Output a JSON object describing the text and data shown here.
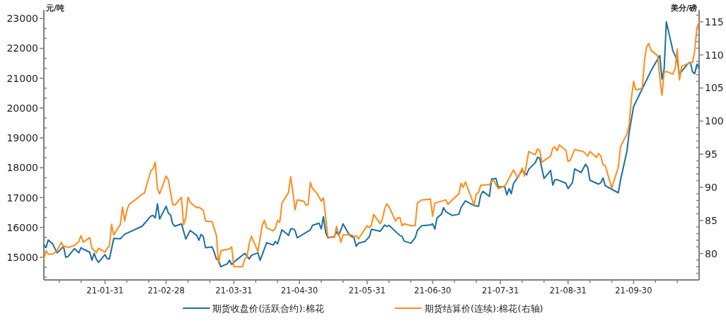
{
  "chart_data": {
    "type": "line",
    "ylabel": "元/吨",
    "y2label": "美分/磅",
    "legend": "bottom",
    "xlim": [
      "--01-03",
      "--10-30"
    ],
    "xticks": [
      {
        "value": "--01-10",
        "label": null
      },
      {
        "value": "--01-20",
        "label": null
      },
      {
        "value": "--01-31",
        "label": "21-01-31"
      },
      {
        "value": "--02-10",
        "label": null
      },
      {
        "value": "--02-20",
        "label": null
      },
      {
        "value": "--02-28",
        "label": "21-02-28"
      },
      {
        "value": "--03-10",
        "label": null
      },
      {
        "value": "--03-20",
        "label": null
      },
      {
        "value": "--03-31",
        "label": "21-03-31"
      },
      {
        "value": "--04-10",
        "label": null
      },
      {
        "value": "--04-20",
        "label": null
      },
      {
        "value": "--04-30",
        "label": "21-04-30"
      },
      {
        "value": "--05-10",
        "label": null
      },
      {
        "value": "--05-20",
        "label": null
      },
      {
        "value": "--05-31",
        "label": "21-05-31"
      },
      {
        "value": "--06-10",
        "label": null
      },
      {
        "value": "--06-20",
        "label": null
      },
      {
        "value": "--06-30",
        "label": "21-06-30"
      },
      {
        "value": "--07-10",
        "label": null
      },
      {
        "value": "--07-20",
        "label": null
      },
      {
        "value": "--07-31",
        "label": "21-07-31"
      },
      {
        "value": "--08-10",
        "label": null
      },
      {
        "value": "--08-20",
        "label": null
      },
      {
        "value": "--08-31",
        "label": "21-08-31"
      },
      {
        "value": "--09-10",
        "label": null
      },
      {
        "value": "--09-20",
        "label": null
      },
      {
        "value": "--09-30",
        "label": "21-09-30"
      },
      {
        "value": "--10-10",
        "label": null
      },
      {
        "value": "--10-20",
        "label": null
      }
    ],
    "ylim": [
      14240,
      23290
    ],
    "yticks": [
      {
        "value": 14333.33,
        "label": null
      },
      {
        "value": 14666.67,
        "label": null
      },
      15000,
      {
        "value": 15333.33,
        "label": null
      },
      {
        "value": 15666.67,
        "label": null
      },
      16000,
      {
        "value": 16333.33,
        "label": null
      },
      {
        "value": 16666.67,
        "label": null
      },
      17000,
      {
        "value": 17333.33,
        "label": null
      },
      {
        "value": 17666.67,
        "label": null
      },
      18000,
      {
        "value": 18333.33,
        "label": null
      },
      {
        "value": 18666.67,
        "label": null
      },
      19000,
      {
        "value": 19333.33,
        "label": null
      },
      {
        "value": 19666.67,
        "label": null
      },
      20000,
      {
        "value": 20333.33,
        "label": null
      },
      {
        "value": 20666.67,
        "label": null
      },
      21000,
      {
        "value": 21333.33,
        "label": null
      },
      {
        "value": 21666.67,
        "label": null
      },
      22000,
      {
        "value": 22333.33,
        "label": null
      },
      {
        "value": 22666.67,
        "label": null
      },
      23000
    ],
    "y2lim": [
      76,
      116.8
    ],
    "y2ticks": [
      {
        "value": 77,
        "label": null
      },
      {
        "value": 78,
        "label": null
      },
      {
        "value": 79,
        "label": null
      },
      80,
      {
        "value": 81,
        "label": null
      },
      {
        "value": 82,
        "label": null
      },
      {
        "value": 83,
        "label": null
      },
      {
        "value": 84,
        "label": null
      },
      85,
      {
        "value": 86,
        "label": null
      },
      {
        "value": 87,
        "label": null
      },
      {
        "value": 88,
        "label": null
      },
      {
        "value": 89,
        "label": null
      },
      90,
      {
        "value": 91,
        "label": null
      },
      {
        "value": 92,
        "label": null
      },
      {
        "value": 93,
        "label": null
      },
      {
        "value": 94,
        "label": null
      },
      95,
      {
        "value": 96,
        "label": null
      },
      {
        "value": 97,
        "label": null
      },
      {
        "value": 98,
        "label": null
      },
      {
        "value": 99,
        "label": null
      },
      100,
      {
        "value": 101,
        "label": null
      },
      {
        "value": 102,
        "label": null
      },
      {
        "value": 103,
        "label": null
      },
      {
        "value": 104,
        "label": null
      },
      105,
      {
        "value": 106,
        "label": null
      },
      {
        "value": 107,
        "label": null
      },
      {
        "value": 108,
        "label": null
      },
      {
        "value": 109,
        "label": null
      },
      110,
      {
        "value": 111,
        "label": null
      },
      {
        "value": 112,
        "label": null
      },
      {
        "value": 113,
        "label": null
      },
      {
        "value": 114,
        "label": null
      },
      115,
      {
        "value": 116,
        "label": null
      }
    ],
    "series": [
      {
        "name": "期货收盘价(活跃合约):棉花",
        "color": "#1b6fa0",
        "x": [
          "--01-03",
          "--01-04",
          "--01-05",
          "--01-07",
          "--01-09",
          "--01-10",
          "--01-12",
          "--01-13",
          "--01-14",
          "--01-17",
          "--01-19",
          "--01-20",
          "--01-21",
          "--01-24",
          "--01-25",
          "--01-26",
          "--01-27",
          "--01-28",
          "--01-31",
          "--02-01",
          "--02-02",
          "--02-04",
          "--02-07",
          "--02-09",
          "--02-17",
          "--02-21",
          "--02-22",
          "--02-23",
          "--02-24",
          "--02-25",
          "--02-28",
          "--03-01",
          "--03-02",
          "--03-03",
          "--03-04",
          "--03-07",
          "--03-09",
          "--03-11",
          "--03-14",
          "--03-15",
          "--03-16",
          "--03-17",
          "--03-18",
          "--03-21",
          "--03-22",
          "--03-23",
          "--03-24",
          "--03-25",
          "--03-28",
          "--03-29",
          "--03-30",
          "--04-01",
          "--04-05",
          "--04-07",
          "--04-08",
          "--04-11",
          "--04-12",
          "--04-13",
          "--04-15",
          "--04-18",
          "--04-19",
          "--04-20",
          "--04-22",
          "--04-25",
          "--04-26",
          "--04-27",
          "--04-28",
          "--04-29",
          "--05-05",
          "--05-06",
          "--05-09",
          "--05-10",
          "--05-11",
          "--05-12",
          "--05-13",
          "--05-16",
          "--05-17",
          "--05-18",
          "--05-20",
          "--05-23",
          "--05-25",
          "--05-26",
          "--05-27",
          "--05-30",
          "--06-01",
          "--06-02",
          "--06-06",
          "--06-08",
          "--06-09",
          "--06-10",
          "--06-15",
          "--06-16",
          "--06-17",
          "--06-20",
          "--06-22",
          "--06-23",
          "--06-25",
          "--06-29",
          "--06-30",
          "--07-01",
          "--07-02",
          "--07-04",
          "--07-05",
          "--07-06",
          "--07-09",
          "--07-12",
          "--07-13",
          "--07-15",
          "--07-16",
          "--07-19",
          "--07-21",
          "--07-22",
          "--07-23",
          "--07-26",
          "--07-27",
          "--07-29",
          "--07-30",
          "--08-02",
          "--08-03",
          "--08-04",
          "--08-05",
          "--08-06",
          "--08-10",
          "--08-12",
          "--08-13",
          "--08-16",
          "--08-17",
          "--08-18",
          "--08-20",
          "--08-23",
          "--08-24",
          "--08-25",
          "--08-26",
          "--08-30",
          "--08-31",
          "--09-02",
          "--09-03",
          "--09-06",
          "--09-08",
          "--09-09",
          "--09-10",
          "--09-14",
          "--09-15",
          "--09-16",
          "--09-17",
          "--09-23",
          "--09-24",
          "--09-27",
          "--09-28",
          "--09-30",
          "--10-08",
          "--10-12",
          "--10-13",
          "--10-14",
          "--10-15",
          "--10-18",
          "--10-20",
          "--10-21",
          "--10-22",
          "--10-25",
          "--10-26",
          "--10-27",
          "--10-28",
          "--10-29",
          "--10-30"
        ],
        "values": [
          15410,
          15330,
          15580,
          15450,
          15150,
          15210,
          15370,
          15000,
          15020,
          15290,
          15150,
          15320,
          15270,
          15170,
          14900,
          15130,
          14940,
          14830,
          15090,
          14950,
          14940,
          15630,
          15620,
          15770,
          16040,
          16380,
          16400,
          16320,
          16790,
          16280,
          16710,
          16480,
          16420,
          16120,
          16040,
          16120,
          15610,
          15900,
          15730,
          15570,
          15770,
          15690,
          15320,
          15350,
          15170,
          14940,
          14900,
          14680,
          14780,
          14900,
          14760,
          14900,
          15130,
          14940,
          15060,
          15150,
          14900,
          15090,
          15490,
          15410,
          15530,
          15450,
          15920,
          15730,
          15950,
          15960,
          15900,
          15650,
          15920,
          16070,
          16140,
          15950,
          16360,
          15840,
          15650,
          15690,
          15860,
          15730,
          16120,
          15730,
          15650,
          15370,
          15470,
          15530,
          15690,
          15940,
          15870,
          16080,
          16030,
          16070,
          15730,
          15700,
          15540,
          15470,
          15650,
          15900,
          16060,
          16080,
          16120,
          15940,
          16320,
          16440,
          16660,
          16530,
          16400,
          16440,
          16670,
          16890,
          16850,
          16730,
          16710,
          17080,
          17210,
          17040,
          17620,
          17640,
          17360,
          17360,
          17090,
          17300,
          17130,
          17460,
          17920,
          17760,
          17950,
          18170,
          18350,
          18330,
          17640,
          17910,
          17420,
          17600,
          17600,
          17480,
          17300,
          17500,
          17960,
          17840,
          18120,
          18010,
          17580,
          17450,
          17500,
          17660,
          17400,
          17160,
          17580,
          18570,
          19200,
          20050,
          21250,
          21760,
          20970,
          21310,
          22890,
          21920,
          21600,
          21110,
          21230,
          21500,
          21530,
          21210,
          21150,
          21470,
          21370
        ]
      },
      {
        "name": "期货结算价(连续):棉花(右轴)",
        "color": "#ff8c1a",
        "axis": "y2",
        "x": [
          "--01-03",
          "--01-04",
          "--01-05",
          "--01-07",
          "--01-09",
          "--01-11",
          "--01-12",
          "--01-13",
          "--01-14",
          "--01-17",
          "--01-19",
          "--01-20",
          "--01-21",
          "--01-24",
          "--01-25",
          "--01-27",
          "--01-28",
          "--01-31",
          "--02-01",
          "--02-02",
          "--02-03",
          "--02-04",
          "--02-07",
          "--02-08",
          "--02-09",
          "--02-10",
          "--02-11",
          "--02-15",
          "--02-17",
          "--02-18",
          "--02-21",
          "--02-22",
          "--02-23",
          "--02-24",
          "--02-25",
          "--02-28",
          "--03-01",
          "--03-03",
          "--03-04",
          "--03-07",
          "--03-08",
          "--03-09",
          "--03-10",
          "--03-11",
          "--03-14",
          "--03-15",
          "--03-17",
          "--03-18",
          "--03-21",
          "--03-23",
          "--03-24",
          "--03-25",
          "--03-29",
          "--03-30",
          "--03-31",
          "--04-04",
          "--04-05",
          "--04-06",
          "--04-07",
          "--04-08",
          "--04-11",
          "--04-13",
          "--04-14",
          "--04-15",
          "--04-18",
          "--04-19",
          "--04-20",
          "--04-21",
          "--04-22",
          "--04-25",
          "--04-26",
          "--04-27",
          "--04-28",
          "--04-29",
          "--05-02",
          "--05-03",
          "--05-04",
          "--05-05",
          "--05-06",
          "--05-08",
          "--05-10",
          "--05-11",
          "--05-12",
          "--05-13",
          "--05-16",
          "--05-17",
          "--05-19",
          "--05-20",
          "--05-24",
          "--05-25",
          "--05-26",
          "--05-27",
          "--05-31",
          "--06-01",
          "--06-02",
          "--06-03",
          "--06-06",
          "--06-07",
          "--06-08",
          "--06-09",
          "--06-10",
          "--06-13",
          "--06-14",
          "--06-15",
          "--06-16",
          "--06-17",
          "--06-20",
          "--06-22",
          "--06-23",
          "--06-25",
          "--06-29",
          "--06-30",
          "--07-01",
          "--07-05",
          "--07-06",
          "--07-07",
          "--07-09",
          "--07-11",
          "--07-12",
          "--07-13",
          "--07-14",
          "--07-15",
          "--07-19",
          "--07-20",
          "--07-21",
          "--07-22",
          "--07-26",
          "--07-27",
          "--07-28",
          "--07-30",
          "--08-02",
          "--08-03",
          "--08-04",
          "--08-06",
          "--08-08",
          "--08-10",
          "--08-11",
          "--08-13",
          "--08-16",
          "--08-17",
          "--08-18",
          "--08-19",
          "--08-23",
          "--08-24",
          "--08-25",
          "--08-26",
          "--08-27",
          "--08-30",
          "--08-31",
          "--09-01",
          "--09-03",
          "--09-07",
          "--09-09",
          "--09-10",
          "--09-13",
          "--09-14",
          "--09-15",
          "--09-16",
          "--09-17",
          "--09-20",
          "--09-22",
          "--09-23",
          "--09-24",
          "--09-27",
          "--09-28",
          "--09-29",
          "--09-30",
          "--10-01",
          "--10-04",
          "--10-05",
          "--10-06",
          "--10-07",
          "--10-08",
          "--10-11",
          "--10-12",
          "--10-13",
          "--10-14",
          "--10-15",
          "--10-18",
          "--10-19",
          "--10-20",
          "--10-21",
          "--10-22",
          "--10-26",
          "--10-27",
          "--10-28",
          "--10-29",
          "--10-30"
        ],
        "values": [
          79.2,
          80.4,
          79.9,
          79.9,
          80.4,
          81.7,
          81.0,
          81.1,
          80.9,
          81.2,
          81.8,
          82.7,
          81.7,
          82.4,
          80.8,
          80.1,
          80.8,
          80.2,
          80.8,
          81.1,
          84.4,
          82.8,
          84.4,
          87.0,
          84.9,
          86.5,
          87.4,
          88.4,
          89.0,
          89.1,
          92.5,
          92.8,
          93.8,
          89.8,
          89.0,
          91.7,
          91.1,
          87.4,
          87.3,
          88.5,
          84.3,
          85.4,
          88.5,
          87.7,
          86.9,
          87.0,
          86.5,
          84.9,
          84.8,
          82.7,
          78.5,
          80.4,
          80.7,
          81.0,
          78.0,
          78.0,
          79.2,
          79.5,
          81.5,
          82.6,
          80.3,
          84.3,
          85.0,
          83.9,
          83.4,
          83.8,
          85.0,
          84.7,
          87.6,
          89.2,
          91.6,
          89.3,
          86.6,
          88.1,
          87.9,
          87.3,
          87.4,
          90.7,
          89.8,
          89.1,
          87.9,
          88.4,
          85.6,
          82.5,
          82.4,
          84.1,
          81.7,
          82.8,
          82.8,
          82.5,
          82.7,
          82.2,
          84.2,
          83.9,
          84.3,
          85.9,
          84.5,
          85.2,
          86.7,
          87.5,
          87.1,
          84.9,
          85.4,
          85.4,
          84.2,
          84.5,
          84.2,
          84.2,
          87.6,
          88.1,
          88.2,
          85.6,
          87.6,
          88.0,
          88.1,
          87.4,
          88.1,
          88.7,
          89.0,
          90.6,
          90.0,
          90.8,
          87.3,
          89.0,
          89.2,
          90.3,
          90.4,
          90.9,
          91.0,
          89.8,
          90.2,
          90.7,
          91.4,
          92.6,
          91.4,
          92.9,
          91.7,
          95.4,
          94.9,
          95.8,
          95.6,
          93.8,
          94.7,
          95.9,
          96.1,
          95.5,
          96.4,
          95.6,
          93.9,
          94.1,
          95.7,
          95.4,
          94.7,
          95.4,
          94.5,
          95.1,
          94.7,
          93.4,
          93.3,
          89.9,
          92.0,
          93.0,
          96.1,
          98.1,
          99.5,
          103.5,
          106.0,
          104.7,
          105.0,
          109.2,
          111.3,
          111.7,
          110.7,
          109.9,
          106.6,
          103.9,
          107.4,
          107.5,
          107.1,
          107.9,
          110.9,
          106.2,
          108.3,
          108.8,
          108.9,
          110.7,
          114.1,
          115.0
        ]
      }
    ]
  }
}
